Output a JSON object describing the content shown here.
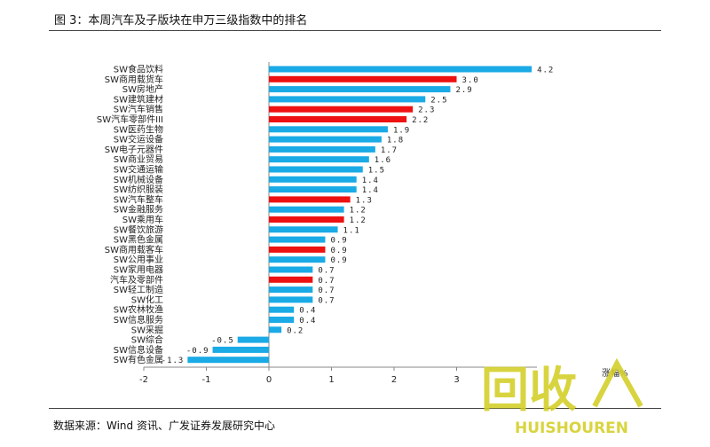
{
  "figure": {
    "title": "图 3：本周汽车及子版块在申万三级指数中的排名",
    "source": "数据来源：Wind 资讯、广发证券发展研究中心"
  },
  "watermark": {
    "brand": "回收",
    "subtitle": "HUISHOUREN",
    "color": "#d4cf2a"
  },
  "colors": {
    "blue": "#1aaae6",
    "red": "#ee1111"
  },
  "chart_data": {
    "type": "bar",
    "orientation": "horizontal",
    "xlabel": "涨幅%",
    "xlim": [
      -2,
      4
    ],
    "xticks": [
      "-2",
      "-1",
      "0",
      "1",
      "2",
      "3"
    ],
    "grid": false,
    "categories": [
      "SW食品饮料",
      "SW商用载货车",
      "SW房地产",
      "SW建筑建材",
      "SW汽车销售",
      "SW汽车零部件III",
      "SW医药生物",
      "SW交运设备",
      "SW电子元器件",
      "SW商业贸易",
      "SW交通运输",
      "SW机械设备",
      "SW纺织服装",
      "SW汽车整车",
      "SW金融服务",
      "SW乘用车",
      "SW餐饮旅游",
      "SW黑色金属",
      "SW商用载客车",
      "SW公用事业",
      "SW家用电器",
      "汽车及零部件",
      "SW轻工制造",
      "SW化工",
      "SW农林牧渔",
      "SW信息服务",
      "SW采掘",
      "SW综合",
      "SW信息设备",
      "SW有色金属"
    ],
    "values": [
      4.2,
      3.0,
      2.9,
      2.5,
      2.3,
      2.2,
      1.9,
      1.8,
      1.7,
      1.6,
      1.5,
      1.4,
      1.4,
      1.3,
      1.2,
      1.2,
      1.1,
      0.9,
      0.9,
      0.9,
      0.7,
      0.7,
      0.7,
      0.7,
      0.4,
      0.4,
      0.2,
      -0.5,
      -0.9,
      -1.3
    ],
    "value_labels": [
      "4.2",
      "3.0",
      "2.9",
      "2.5",
      "2.3",
      "2.2",
      "1.9",
      "1.8",
      "1.7",
      "1.6",
      "1.5",
      "1.4",
      "1.4",
      "1.3",
      "1.2",
      "1.2",
      "1.1",
      "0.9",
      "0.9",
      "0.9",
      "0.7",
      "0.7",
      "0.7",
      "0.7",
      "0.4",
      "0.4",
      "0.2",
      "-0.5",
      "-0.9",
      "-1.3"
    ],
    "highlight": [
      false,
      true,
      false,
      false,
      true,
      true,
      false,
      false,
      false,
      false,
      false,
      false,
      false,
      true,
      false,
      true,
      false,
      false,
      true,
      false,
      false,
      true,
      false,
      false,
      false,
      false,
      false,
      false,
      false,
      false
    ]
  }
}
